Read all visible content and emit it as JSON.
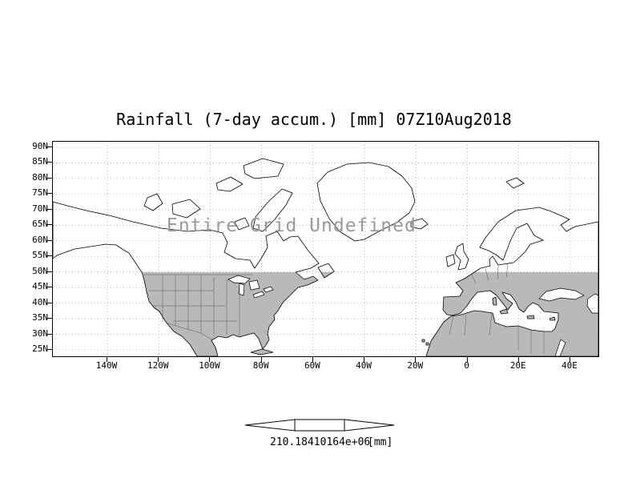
{
  "title": "Rainfall (7-day accum.) [mm] 07Z10Aug2018",
  "map": {
    "undefined_message": "Entire Grid Undefined",
    "axes": {
      "lat_labels": [
        "90N",
        "85N",
        "80N",
        "75N",
        "70N",
        "65N",
        "60N",
        "55N",
        "50N",
        "45N",
        "40N",
        "35N",
        "30N",
        "25N"
      ],
      "lon_labels": [
        "140W",
        "120W",
        "100W",
        "80W",
        "60W",
        "40W",
        "20W",
        "0",
        "20E",
        "40E"
      ]
    },
    "colors": {
      "coastline": "#000000",
      "land_shading": "#b9b9b9",
      "undefined_text": "#9a9a9a"
    }
  },
  "colorbar": {
    "value_text": "210.18410164e+06",
    "unit_text": "[mm]"
  },
  "chart_data": {
    "type": "heatmap",
    "title": "Rainfall (7-day accum.) [mm] 07Z10Aug2018",
    "variable": "Rainfall (7-day accum.)",
    "units": "mm",
    "valid_time": "07Z10Aug2018",
    "x_tick_labels": [
      "140W",
      "120W",
      "100W",
      "80W",
      "60W",
      "40W",
      "20W",
      "0",
      "20E",
      "40E"
    ],
    "y_tick_labels": [
      "90N",
      "85N",
      "80N",
      "75N",
      "70N",
      "65N",
      "60N",
      "55N",
      "50N",
      "45N",
      "40N",
      "35N",
      "30N",
      "25N"
    ],
    "values": [],
    "data_status": "Entire Grid Undefined",
    "colorbar_labels": [
      "210.18410164e+06"
    ],
    "colorbar_unit": "[mm]",
    "legend_position": "bottom",
    "grid": "dotted",
    "shading_note": "land areas south of 50N shaded gray; no rainfall values plotted"
  }
}
